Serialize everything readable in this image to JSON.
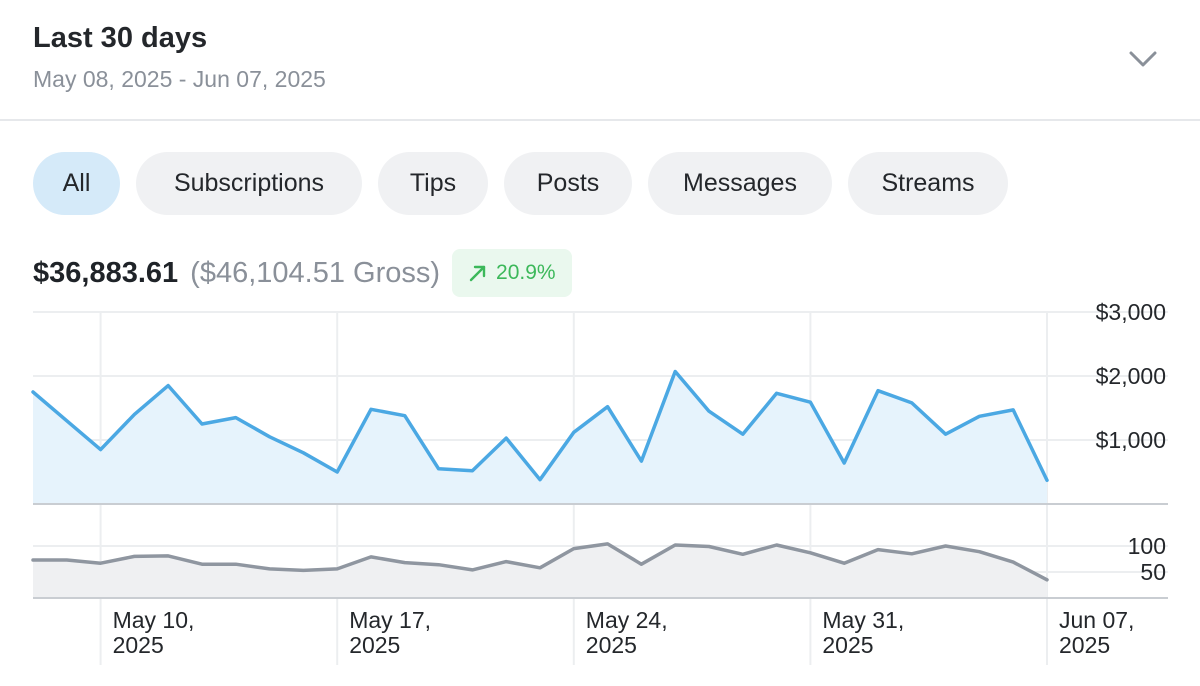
{
  "header": {
    "title": "Last 30 days",
    "date_range": "May 08, 2025 - Jun 07, 2025",
    "expand_icon": "chevron-down-icon"
  },
  "tabs": [
    {
      "label": "All",
      "active": true
    },
    {
      "label": "Subscriptions",
      "active": false
    },
    {
      "label": "Tips",
      "active": false
    },
    {
      "label": "Posts",
      "active": false
    },
    {
      "label": "Messages",
      "active": false
    },
    {
      "label": "Streams",
      "active": false
    }
  ],
  "summary": {
    "net": "$36,883.61",
    "gross": "($46,104.51 Gross)",
    "change": "20.9%",
    "change_icon": "arrow-up-right-icon"
  },
  "colors": {
    "earnings_line": "#4ba8e3",
    "earnings_fill": "#e6f3fc",
    "count_line": "#8f96a0",
    "count_fill": "#eff0f2",
    "change_positive": "#3cb85a"
  },
  "chart_data": {
    "type": "area",
    "x": [
      "2025-05-08",
      "2025-05-09",
      "2025-05-10",
      "2025-05-11",
      "2025-05-12",
      "2025-05-13",
      "2025-05-14",
      "2025-05-15",
      "2025-05-16",
      "2025-05-17",
      "2025-05-18",
      "2025-05-19",
      "2025-05-20",
      "2025-05-21",
      "2025-05-22",
      "2025-05-23",
      "2025-05-24",
      "2025-05-25",
      "2025-05-26",
      "2025-05-27",
      "2025-05-28",
      "2025-05-29",
      "2025-05-30",
      "2025-05-31",
      "2025-06-01",
      "2025-06-02",
      "2025-06-03",
      "2025-06-04",
      "2025-06-05",
      "2025-06-06",
      "2025-06-07"
    ],
    "x_tick_labels": [
      {
        "line1": "May 10,",
        "line2": "2025",
        "date": "2025-05-10"
      },
      {
        "line1": "May 17,",
        "line2": "2025",
        "date": "2025-05-17"
      },
      {
        "line1": "May 24,",
        "line2": "2025",
        "date": "2025-05-24"
      },
      {
        "line1": "May 31,",
        "line2": "2025",
        "date": "2025-05-31"
      },
      {
        "line1": "Jun 07,",
        "line2": "2025",
        "date": "2025-06-07"
      }
    ],
    "panels": [
      {
        "name": "earnings",
        "ylim": [
          0,
          3000
        ],
        "yticks": [
          {
            "value": 1000,
            "label": "$1,000"
          },
          {
            "value": 2000,
            "label": "$2,000"
          },
          {
            "value": 3000,
            "label": "$3,000"
          }
        ],
        "series": [
          {
            "values": [
              1750,
              1300,
              850,
              1400,
              1850,
              1250,
              1350,
              1050,
              800,
              500,
              1480,
              1380,
              550,
              520,
              1030,
              380,
              1120,
              1520,
              670,
              2070,
              1450,
              1090,
              1730,
              1590,
              640,
              1770,
              1580,
              1090,
              1370,
              1470,
              370
            ]
          }
        ]
      },
      {
        "name": "count",
        "ylim": [
          0,
          150
        ],
        "yticks": [
          {
            "value": 50,
            "label": "50"
          },
          {
            "value": 100,
            "label": "100"
          }
        ],
        "series": [
          {
            "values": [
              73,
              73,
              67,
              80,
              81,
              65,
              65,
              56,
              53,
              56,
              79,
              68,
              64,
              54,
              70,
              58,
              95,
              104,
              65,
              102,
              99,
              84,
              102,
              87,
              67,
              93,
              85,
              100,
              89,
              69,
              35
            ]
          }
        ]
      }
    ],
    "grid": true
  }
}
